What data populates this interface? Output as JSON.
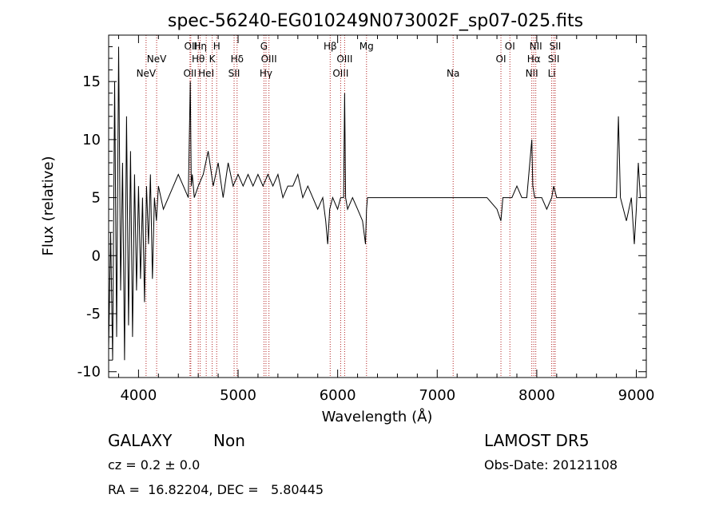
{
  "chart_data": {
    "type": "line",
    "title": "spec-56240-EG010249N073002F_sp07-025.fits",
    "xlabel": "Wavelength (Å)",
    "ylabel": "Flux (relative)",
    "xlim": [
      3700,
      9100
    ],
    "ylim": [
      -10.5,
      19
    ],
    "xticks": [
      4000,
      5000,
      6000,
      7000,
      8000,
      9000
    ],
    "yticks": [
      -10,
      -5,
      0,
      5,
      10,
      15
    ],
    "xtick_labels": [
      "4000",
      "5000",
      "6000",
      "7000",
      "8000",
      "9000"
    ],
    "ytick_labels": [
      "-10",
      "-5",
      "0",
      "5",
      "10",
      "15"
    ],
    "grid": false,
    "series": [
      {
        "x": [
          3700,
          3720,
          3740,
          3760,
          3780,
          3800,
          3820,
          3840,
          3860,
          3880,
          3900,
          3920,
          3940,
          3960,
          3980,
          4000,
          4020,
          4040,
          4060,
          4080,
          4100,
          4120,
          4140,
          4160,
          4180,
          4200,
          4250,
          4300,
          4350,
          4400,
          4450,
          4500,
          4520,
          4530,
          4540,
          4560,
          4600,
          4650,
          4700,
          4750,
          4800,
          4850,
          4900,
          4950,
          5000,
          5050,
          5100,
          5150,
          5200,
          5250,
          5300,
          5350,
          5400,
          5450,
          5500,
          5550,
          5600,
          5650,
          5700,
          5750,
          5800,
          5850,
          5880,
          5900,
          5920,
          5950,
          6000,
          6030,
          6060,
          6070,
          6080,
          6100,
          6150,
          6200,
          6250,
          6280,
          6290,
          6300,
          6350,
          6400,
          6500,
          6600,
          6700,
          6800,
          6900,
          7000,
          7100,
          7200,
          7300,
          7400,
          7500,
          7600,
          7640,
          7660,
          7700,
          7750,
          7800,
          7850,
          7900,
          7950,
          7960,
          7980,
          8000,
          8050,
          8100,
          8150,
          8170,
          8200,
          8300,
          8400,
          8500,
          8600,
          8700,
          8750,
          8800,
          8820,
          8840,
          8900,
          8950,
          8980,
          9000,
          9020,
          9040
        ],
        "y": [
          -8,
          2,
          -9,
          15,
          -7,
          18,
          -3,
          8,
          -9,
          12,
          -6,
          9,
          -7,
          7,
          -3,
          6,
          -2,
          5,
          -4,
          6,
          1,
          7,
          -2,
          5,
          3,
          6,
          4,
          5,
          6,
          7,
          6,
          5,
          15,
          6,
          7,
          5,
          6,
          7,
          9,
          6,
          8,
          5,
          8,
          6,
          7,
          6,
          7,
          6,
          7,
          6,
          7,
          6,
          7,
          5,
          6,
          6,
          7,
          5,
          6,
          5,
          4,
          5,
          3,
          1,
          4,
          5,
          4,
          5,
          5,
          14,
          5,
          4,
          5,
          4,
          3,
          1,
          4,
          5,
          5,
          5,
          5,
          5,
          5,
          5,
          5,
          5,
          5,
          5,
          5,
          5,
          5,
          4,
          3,
          5,
          5,
          5,
          6,
          5,
          5,
          10,
          6,
          5,
          5,
          5,
          4,
          5,
          6,
          5,
          5,
          5,
          5,
          5,
          5,
          5,
          5,
          12,
          5,
          3,
          5,
          1,
          4,
          8,
          5
        ]
      }
    ],
    "line_markers": [
      {
        "wavelength": 4076,
        "label": "NeV",
        "row": 2
      },
      {
        "wavelength": 4182,
        "label": "NeV",
        "row": 1
      },
      {
        "wavelength": 4517,
        "label": "OII",
        "row": 2
      },
      {
        "wavelength": 4525,
        "label": "OII",
        "row": 0
      },
      {
        "wavelength": 4600,
        "label": "Hθ",
        "row": 1
      },
      {
        "wavelength": 4620,
        "label": "Hη",
        "row": 0
      },
      {
        "wavelength": 4680,
        "label": "HeI",
        "row": 2
      },
      {
        "wavelength": 4740,
        "label": "K",
        "row": 1
      },
      {
        "wavelength": 4785,
        "label": "H",
        "row": 0
      },
      {
        "wavelength": 4960,
        "label": "SII",
        "row": 2
      },
      {
        "wavelength": 4990,
        "label": "Hδ",
        "row": 1
      },
      {
        "wavelength": 5260,
        "label": "G",
        "row": 0
      },
      {
        "wavelength": 5280,
        "label": "Hγ",
        "row": 2
      },
      {
        "wavelength": 5310,
        "label": "OIII",
        "row": 1
      },
      {
        "wavelength": 5925,
        "label": "Hβ",
        "row": 0
      },
      {
        "wavelength": 6030,
        "label": "OIII",
        "row": 2
      },
      {
        "wavelength": 6070,
        "label": "OIII",
        "row": 1
      },
      {
        "wavelength": 6290,
        "label": "Mg",
        "row": 0
      },
      {
        "wavelength": 7160,
        "label": "Na",
        "row": 2
      },
      {
        "wavelength": 7640,
        "label": "OI",
        "row": 1
      },
      {
        "wavelength": 7730,
        "label": "OI",
        "row": 0
      },
      {
        "wavelength": 7950,
        "label": "NII",
        "row": 2
      },
      {
        "wavelength": 7970,
        "label": "Hα",
        "row": 1
      },
      {
        "wavelength": 7990,
        "label": "NII",
        "row": 0
      },
      {
        "wavelength": 8150,
        "label": "Li",
        "row": 2
      },
      {
        "wavelength": 8170,
        "label": "SII",
        "row": 1
      },
      {
        "wavelength": 8185,
        "label": "SII",
        "row": 0
      }
    ]
  },
  "info": {
    "class": "GALAXY",
    "subclass": "Non",
    "survey": "LAMOST DR5",
    "cz": "cz = 0.2 ± 0.0",
    "obs_date": "Obs-Date: 20121108",
    "radec": "RA =  16.82204, DEC =   5.80445"
  }
}
